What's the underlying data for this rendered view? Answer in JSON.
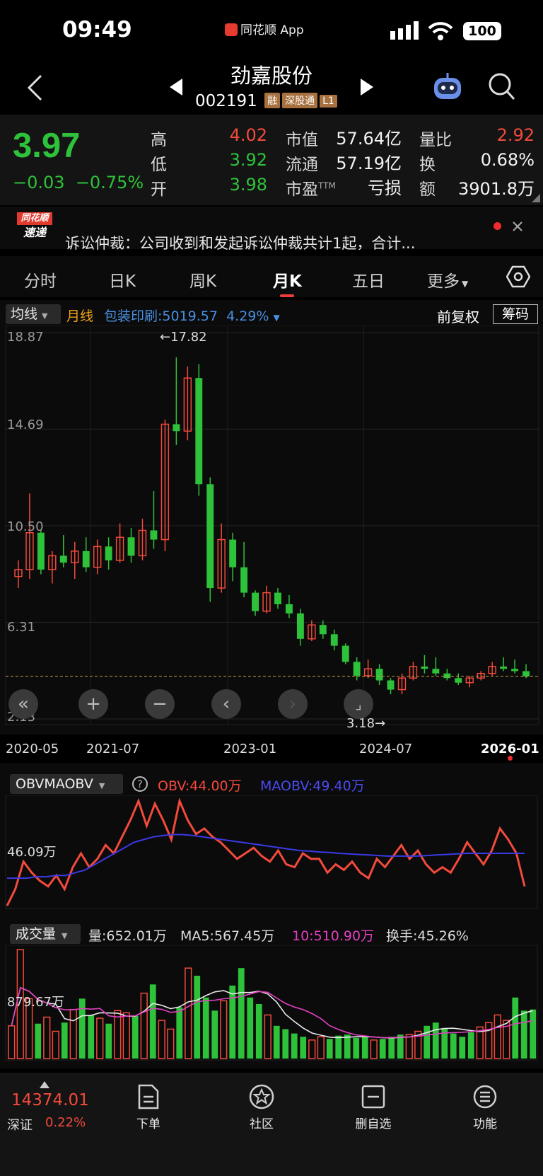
{
  "status": {
    "time": "09:49",
    "app": "同花顺 App",
    "battery": "100"
  },
  "header": {
    "title": "劲嘉股份",
    "code": "002191",
    "tags": [
      "融",
      "深股通",
      "L1"
    ]
  },
  "quote": {
    "price": "3.97",
    "change": "−0.03",
    "change_pct": "−0.75%",
    "high_label": "高",
    "high": "4.02",
    "low_label": "低",
    "low": "3.92",
    "open_label": "开",
    "open": "3.98",
    "mcap_label": "市值",
    "mcap": "57.64亿",
    "float_label": "流通",
    "float": "57.19亿",
    "pe_label": "市盈",
    "pe_sup": "TTM",
    "pe": "亏损",
    "vr_label": "量比",
    "vr": "2.92",
    "turn_label": "换",
    "turn": "0.68%",
    "amt_label": "额",
    "amt": "3901.8万"
  },
  "news": {
    "badge_top": "同花顺",
    "badge_bottom": "速递",
    "text": "诉讼仲裁：公司收到和发起诉讼仲裁共计1起，合计..."
  },
  "tabs": [
    {
      "label": "分时"
    },
    {
      "label": "日K"
    },
    {
      "label": "周K"
    },
    {
      "label": "月K"
    },
    {
      "label": "五日"
    },
    {
      "label": "更多"
    }
  ],
  "legend": {
    "ma_select": "均线",
    "ma_line": "月线",
    "sector": "包装印刷:5019.57",
    "sector_pct": "4.29%",
    "adjust": "前复权",
    "chips": "筹码"
  },
  "yaxis": {
    "top": "18.87",
    "mid1": "14.69",
    "mid2": "10.50",
    "mid3": "6.31",
    "bottom": "2.13"
  },
  "annotations": {
    "high": "←17.82",
    "low": "3.18→"
  },
  "xaxis": [
    "2020-05",
    "2021-07",
    "2023-01",
    "2024-07",
    "2026-01"
  ],
  "obv": {
    "select": "OBVMAOBV",
    "obv": "OBV:44.00万",
    "maobv": "MAOBV:49.40万",
    "axis": "46.09万"
  },
  "volume": {
    "select": "成交量",
    "vol": "量:652.01万",
    "ma5": "MA5:567.45万",
    "ma10": "10:510.90万",
    "turnover": "换手:45.26%",
    "axis": "879.67万"
  },
  "bottom": {
    "index_value": "14374.01",
    "index_name": "深证",
    "index_pct": "0.22%",
    "items": [
      "下单",
      "社区",
      "删自选",
      "功能"
    ]
  },
  "colors": {
    "up": "#f24a3c",
    "down": "#2ec23a",
    "blue": "#3b82f6",
    "sector": "#4a90e2",
    "ma": "#f2a21a"
  },
  "chart_data": [
    {
      "type": "candlestick",
      "title": "劲嘉股份 月K",
      "period": "monthly",
      "x_range": [
        "2020-05",
        "2026-01"
      ],
      "ylim": [
        2.13,
        18.87
      ],
      "yticks": [
        18.87,
        14.69,
        10.5,
        6.31,
        2.13
      ],
      "marked_high": 17.82,
      "marked_low": 3.18,
      "series": [
        {
          "name": "劲嘉股份",
          "ohlc": [
            [
              8.3,
              9.0,
              7.8,
              8.6
            ],
            [
              8.6,
              11.9,
              8.2,
              10.2
            ],
            [
              10.2,
              10.3,
              8.4,
              8.6
            ],
            [
              8.6,
              9.4,
              8.0,
              9.2
            ],
            [
              9.2,
              10.1,
              8.7,
              8.9
            ],
            [
              8.9,
              9.8,
              8.2,
              9.4
            ],
            [
              9.4,
              10.0,
              8.5,
              8.7
            ],
            [
              8.7,
              9.9,
              8.4,
              9.6
            ],
            [
              9.6,
              10.0,
              8.6,
              9.0
            ],
            [
              9.0,
              10.6,
              8.9,
              10.0
            ],
            [
              10.0,
              10.4,
              8.9,
              9.2
            ],
            [
              9.2,
              10.8,
              9.0,
              10.3
            ],
            [
              10.3,
              12.0,
              9.5,
              9.9
            ],
            [
              9.9,
              15.1,
              9.4,
              14.9
            ],
            [
              14.9,
              17.8,
              14.0,
              14.6
            ],
            [
              14.6,
              17.4,
              14.2,
              16.9
            ],
            [
              16.9,
              17.5,
              11.8,
              12.3
            ],
            [
              12.3,
              12.6,
              7.2,
              7.8
            ],
            [
              7.8,
              10.6,
              7.6,
              9.9
            ],
            [
              9.9,
              10.2,
              8.1,
              8.7
            ],
            [
              8.7,
              9.8,
              7.4,
              7.6
            ],
            [
              7.6,
              7.7,
              6.6,
              6.8
            ],
            [
              6.8,
              7.9,
              6.7,
              7.6
            ],
            [
              7.6,
              7.8,
              6.9,
              7.1
            ],
            [
              7.1,
              7.5,
              6.5,
              6.7
            ],
            [
              6.7,
              6.9,
              5.3,
              5.6
            ],
            [
              5.6,
              6.4,
              5.5,
              6.2
            ],
            [
              6.2,
              6.4,
              5.6,
              5.8
            ],
            [
              5.8,
              6.0,
              5.1,
              5.3
            ],
            [
              5.3,
              5.4,
              4.5,
              4.6
            ],
            [
              4.6,
              4.8,
              3.8,
              4.0
            ],
            [
              4.0,
              4.7,
              3.9,
              4.3
            ],
            [
              4.3,
              4.5,
              3.6,
              3.8
            ],
            [
              3.8,
              3.9,
              3.2,
              3.4
            ],
            [
              3.4,
              4.1,
              3.2,
              3.9
            ],
            [
              3.9,
              4.6,
              3.8,
              4.4
            ],
            [
              4.4,
              4.9,
              4.1,
              4.3
            ],
            [
              4.3,
              4.8,
              4.0,
              4.1
            ],
            [
              4.1,
              4.3,
              3.8,
              3.9
            ],
            [
              3.9,
              4.1,
              3.6,
              3.7
            ],
            [
              3.7,
              4.0,
              3.5,
              3.9
            ],
            [
              3.9,
              4.2,
              3.8,
              4.1
            ],
            [
              4.1,
              4.6,
              4.0,
              4.4
            ],
            [
              4.4,
              4.8,
              4.2,
              4.3
            ],
            [
              4.3,
              4.7,
              4.1,
              4.2
            ],
            [
              4.2,
              4.5,
              3.9,
              3.97
            ]
          ]
        }
      ]
    },
    {
      "type": "line",
      "title": "OBVMAOBV",
      "series": [
        {
          "name": "OBV",
          "values": [
            -80,
            -20,
            80,
            40,
            10,
            -10,
            30,
            -20,
            60,
            110,
            60,
            90,
            140,
            110,
            170,
            230,
            300,
            210,
            290,
            230,
            160,
            300,
            230,
            180,
            200,
            170,
            150,
            120,
            90,
            110,
            130,
            100,
            80,
            120,
            70,
            60,
            110,
            90,
            90,
            40,
            70,
            50,
            80,
            40,
            20,
            90,
            60,
            100,
            140,
            90,
            120,
            70,
            40,
            60,
            40,
            90,
            150,
            110,
            70,
            120,
            200,
            160,
            110,
            -10
          ]
        },
        {
          "name": "MAOBV",
          "values": [
            20,
            20,
            20,
            25,
            25,
            30,
            30,
            40,
            50,
            70,
            90,
            110,
            130,
            150,
            160,
            170,
            175,
            178,
            178,
            175,
            170,
            165,
            160,
            155,
            150,
            145,
            140,
            135,
            130,
            125,
            120,
            118,
            115,
            113,
            110,
            108,
            106,
            104,
            102,
            100,
            100,
            100,
            100,
            102,
            104,
            106,
            108,
            110,
            110,
            110,
            110,
            110,
            110,
            110
          ]
        }
      ]
    },
    {
      "type": "bar",
      "title": "成交量",
      "series": [
        {
          "name": "量",
          "values": [
            300,
            1000,
            550,
            320,
            380,
            250,
            330,
            450,
            550,
            400,
            370,
            320,
            440,
            420,
            390,
            600,
            680,
            350,
            270,
            470,
            830,
            760,
            560,
            440,
            530,
            670,
            830,
            560,
            500,
            400,
            300,
            270,
            230,
            200,
            170,
            200,
            180,
            210,
            220,
            190,
            200,
            170,
            180,
            200,
            220,
            220,
            250,
            300,
            330,
            280,
            230,
            200,
            240,
            290,
            330,
            400,
            350,
            560,
            440,
            450
          ]
        }
      ]
    }
  ]
}
